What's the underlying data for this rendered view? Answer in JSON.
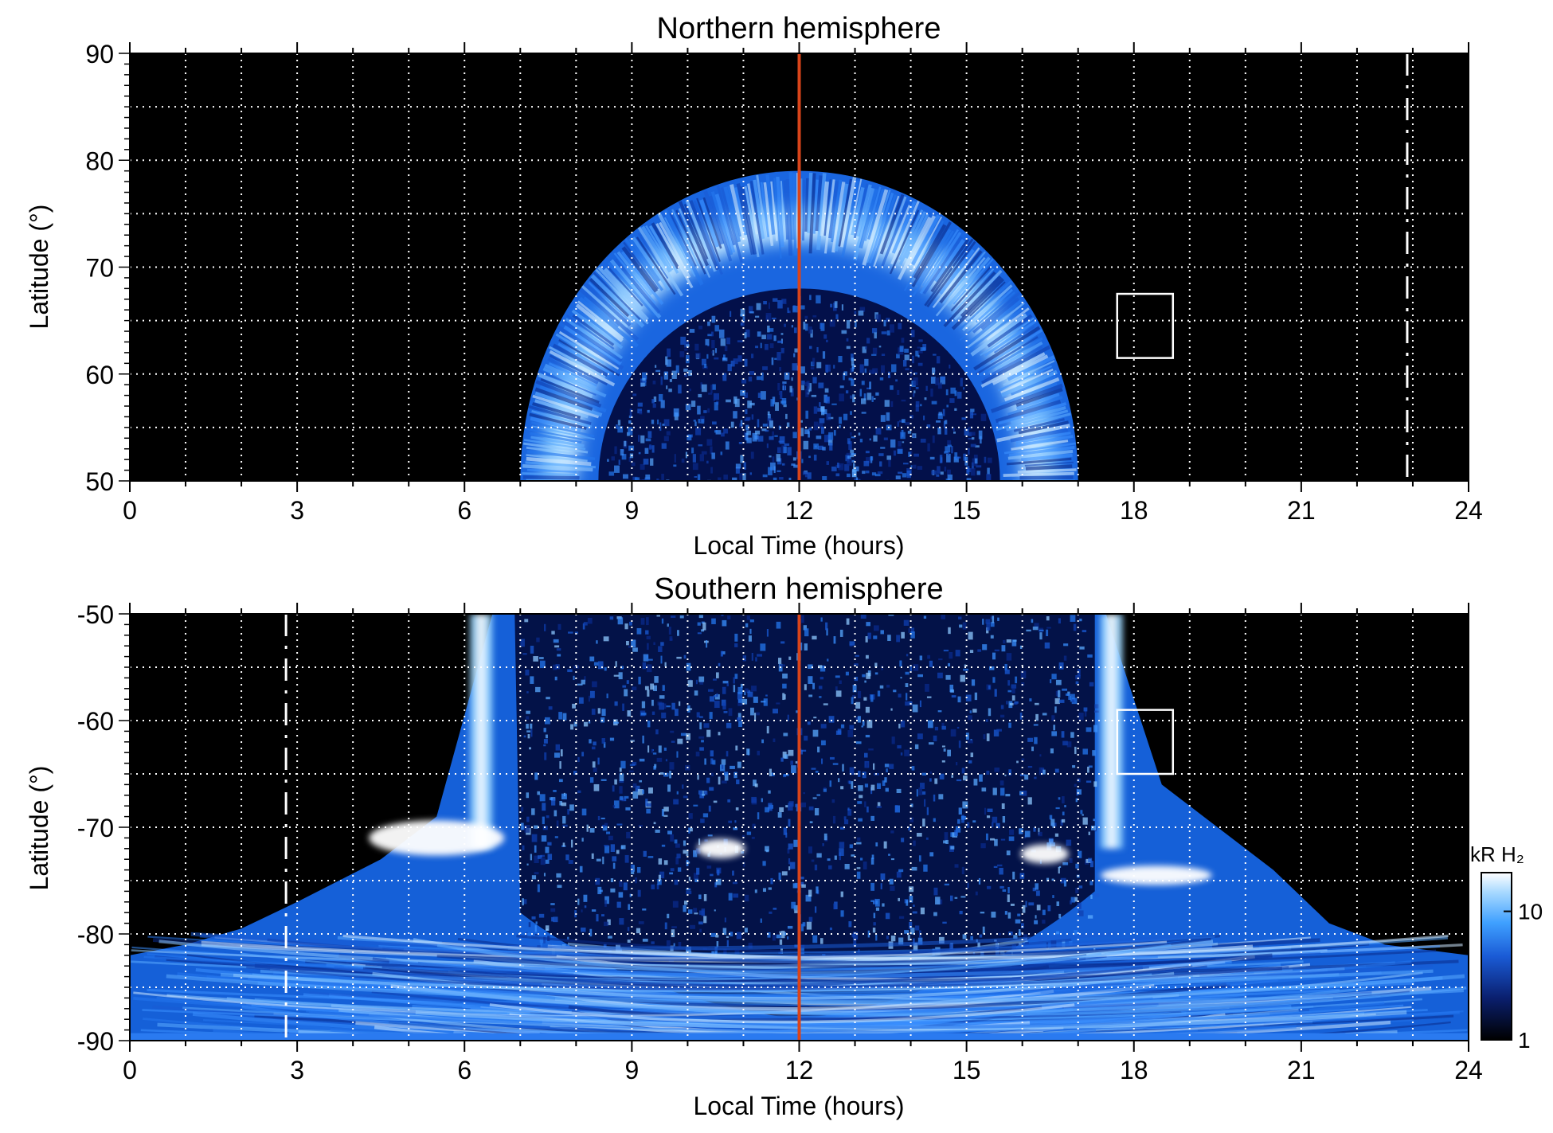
{
  "chart_data": [
    {
      "type": "heatmap",
      "title": "Northern hemisphere",
      "xlabel": "Local Time (hours)",
      "ylabel": "Latitude (°)",
      "xlim": [
        0,
        24
      ],
      "ylim": [
        50,
        90
      ],
      "x_ticks": [
        "0",
        "3",
        "6",
        "9",
        "12",
        "15",
        "18",
        "21",
        "24"
      ],
      "y_ticks": [
        "50",
        "60",
        "70",
        "80",
        "90"
      ],
      "grid": "dotted white, every 1 h and 5°",
      "noon_line_lt": 12,
      "noon_line_color": "#d9441a",
      "dashed_line_lt": 22.9,
      "box": {
        "lt": [
          17.7,
          18.7
        ],
        "lat": [
          61.5,
          67.5
        ]
      },
      "emission_region": {
        "lt_range": [
          7,
          17
        ],
        "oval_peak_lat_at_noon": 74,
        "inner_edge_lat_at_noon": 68,
        "top_lat_at_noon": 79
      }
    },
    {
      "type": "heatmap",
      "title": "Southern hemisphere",
      "xlabel": "Local Time (hours)",
      "ylabel": "Latitude (°)",
      "xlim": [
        0,
        24
      ],
      "ylim": [
        -90,
        -50
      ],
      "x_ticks": [
        "0",
        "3",
        "6",
        "9",
        "12",
        "15",
        "18",
        "21",
        "24"
      ],
      "y_ticks": [
        "-90",
        "-80",
        "-70",
        "-60",
        "-50"
      ],
      "grid": "dotted white, every 1 h and 5°",
      "noon_line_lt": 12,
      "noon_line_color": "#d9441a",
      "dashed_line_lt": 2.8,
      "box": {
        "lt": [
          17.7,
          18.7
        ],
        "lat": [
          -65,
          -59
        ]
      },
      "bright_bands_lt": [
        6.3,
        17.6
      ],
      "bright_spots": [
        {
          "lt": 5.5,
          "lat": -71
        },
        {
          "lt": 10.6,
          "lat": -72
        },
        {
          "lt": 16.4,
          "lat": -72.5
        },
        {
          "lt": 18.4,
          "lat": -74.5
        }
      ]
    }
  ],
  "colorbar": {
    "label": "kR H₂",
    "scale": "log",
    "range": [
      1,
      20
    ],
    "ticks": [
      "1",
      "10"
    ],
    "colors": [
      "#000000",
      "#0a1f6e",
      "#1a5bd6",
      "#3fa0ff",
      "#a6d8ff",
      "#ffffff"
    ]
  }
}
